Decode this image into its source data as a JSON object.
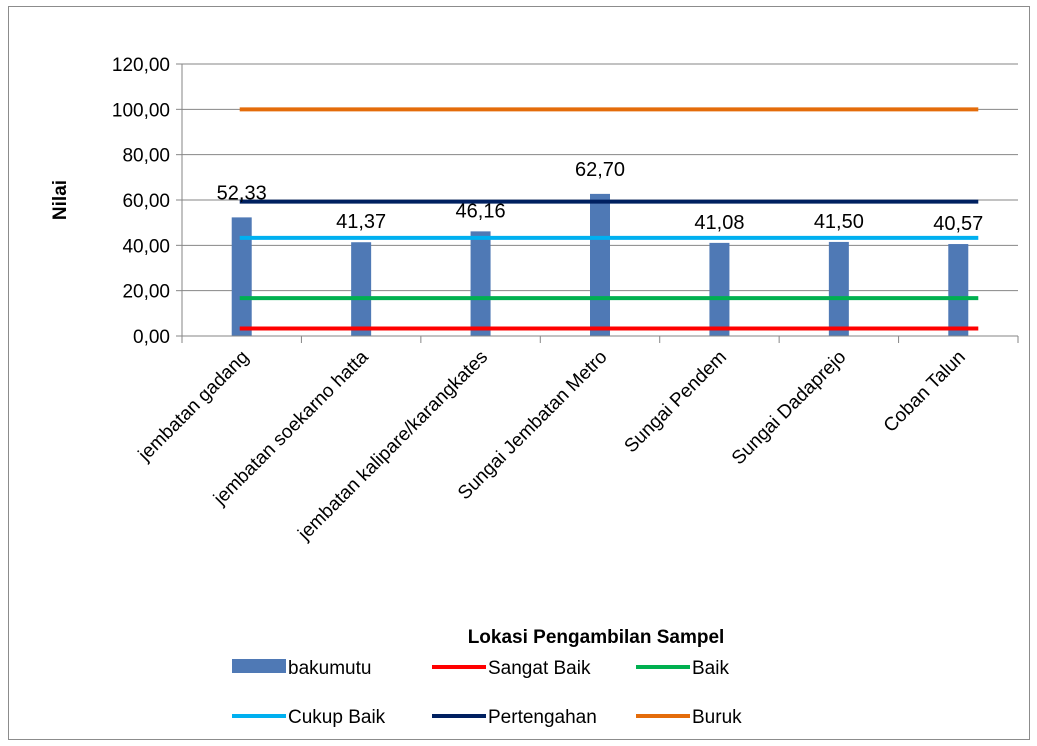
{
  "chart_data": {
    "type": "bar",
    "xlabel": "Lokasi Pengambilan Sampel",
    "ylabel": "Nilai",
    "ylim": [
      0,
      120
    ],
    "y_ticks": [
      "0,00",
      "20,00",
      "40,00",
      "60,00",
      "80,00",
      "100,00",
      "120,00"
    ],
    "grid": true,
    "legend_position": "bottom",
    "categories": [
      "jembatan gadang",
      "jembatan soekarno hatta",
      "jembatan kalipare/karangkates",
      "Sungai Jembatan Metro",
      "Sungai Pendem",
      "Sungai Dadaprejo",
      "Coban Talun"
    ],
    "bar_series": {
      "name": "bakumutu",
      "color": "#4f79b5",
      "values": [
        52.33,
        41.37,
        46.16,
        62.7,
        41.08,
        41.5,
        40.57
      ],
      "labels": [
        "52,33",
        "41,37",
        "46,16",
        "62,70",
        "41,08",
        "41,50",
        "40,57"
      ]
    },
    "line_series": [
      {
        "name": "Sangat Baik",
        "color": "#ff0000",
        "value": 3.3
      },
      {
        "name": "Baik",
        "color": "#00b050",
        "value": 16.7
      },
      {
        "name": "Cukup Baik",
        "color": "#00b0f0",
        "value": 43.3
      },
      {
        "name": "Pertengahan",
        "color": "#002060",
        "value": 59.3
      },
      {
        "name": "Buruk",
        "color": "#e46c0a",
        "value": 100
      }
    ]
  }
}
